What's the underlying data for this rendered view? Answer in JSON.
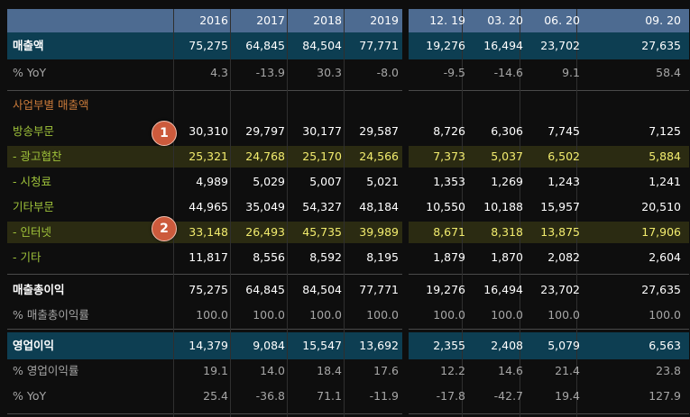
{
  "columns": [
    "2016",
    "2017",
    "2018",
    "2019",
    "12. 19",
    "03. 20",
    "06. 20",
    "09. 20"
  ],
  "rows": [
    {
      "label": "매출액",
      "values": [
        "75,275",
        "64,845",
        "84,504",
        "77,771",
        "19,276",
        "16,494",
        "23,702",
        "27,635"
      ]
    },
    {
      "label": "% YoY",
      "values": [
        "4.3",
        "-13.9",
        "30.3",
        "-8.0",
        "-9.5",
        "-14.6",
        "9.1",
        "58.4"
      ]
    },
    {
      "label": "사업부별 매출액",
      "values": [
        "",
        "",
        "",
        "",
        "",
        "",
        "",
        ""
      ]
    },
    {
      "label": "방송부문",
      "values": [
        "30,310",
        "29,797",
        "30,177",
        "29,587",
        "8,726",
        "6,306",
        "7,745",
        "7,125"
      ]
    },
    {
      "label": "- 광고협찬",
      "values": [
        "25,321",
        "24,768",
        "25,170",
        "24,566",
        "7,373",
        "5,037",
        "6,502",
        "5,884"
      ]
    },
    {
      "label": "- 시청료",
      "values": [
        "4,989",
        "5,029",
        "5,007",
        "5,021",
        "1,353",
        "1,269",
        "1,243",
        "1,241"
      ]
    },
    {
      "label": "기타부문",
      "values": [
        "44,965",
        "35,049",
        "54,327",
        "48,184",
        "10,550",
        "10,188",
        "15,957",
        "20,510"
      ]
    },
    {
      "label": "- 인터넷",
      "values": [
        "33,148",
        "26,493",
        "45,735",
        "39,989",
        "8,671",
        "8,318",
        "13,875",
        "17,906"
      ]
    },
    {
      "label": "- 기타",
      "values": [
        "11,817",
        "8,556",
        "8,592",
        "8,195",
        "1,879",
        "1,870",
        "2,082",
        "2,604"
      ]
    },
    {
      "label": "매출총이익",
      "values": [
        "75,275",
        "64,845",
        "84,504",
        "77,771",
        "19,276",
        "16,494",
        "23,702",
        "27,635"
      ]
    },
    {
      "label": "% 매출총이익률",
      "values": [
        "100.0",
        "100.0",
        "100.0",
        "100.0",
        "100.0",
        "100.0",
        "100.0",
        "100.0"
      ]
    },
    {
      "label": "영업이익",
      "values": [
        "14,379",
        "9,084",
        "15,547",
        "13,692",
        "2,355",
        "2,408",
        "5,079",
        "6,563"
      ]
    },
    {
      "label": "% 영업이익률",
      "values": [
        "19.1",
        "14.0",
        "18.4",
        "17.6",
        "12.2",
        "14.6",
        "21.4",
        "23.8"
      ]
    },
    {
      "label": "% YoY",
      "values": [
        "25.4",
        "-36.8",
        "71.1",
        "-11.9",
        "-17.8",
        "-42.7",
        "19.4",
        "127.9"
      ]
    }
  ],
  "badges": [
    "1",
    "2"
  ],
  "colors": {
    "header": "#4d6b91",
    "band": "#0d3e52",
    "highlight": "#2b2b12",
    "green": "#9fc23a",
    "orange": "#c97a3a",
    "yellow": "#f2ec6e"
  }
}
